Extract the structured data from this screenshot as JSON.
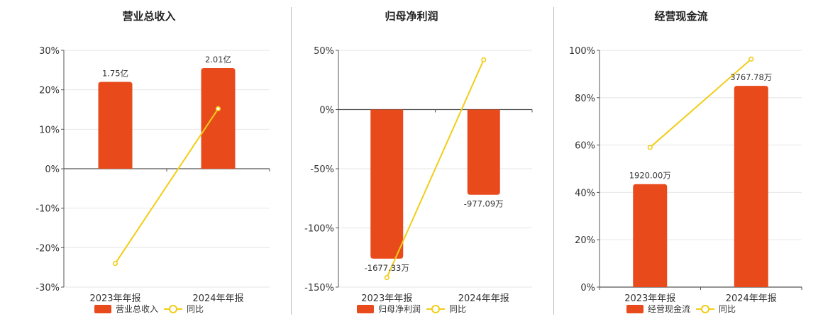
{
  "colors": {
    "bar": "#e84a1c",
    "line": "#f2cd18",
    "grid": "#e6e6e6",
    "axis": "#555555"
  },
  "chart_data": [
    {
      "type": "bar",
      "title": "营业总收入",
      "categories": [
        "2023年年报",
        "2024年年报"
      ],
      "series": [
        {
          "name": "营业总收入",
          "kind": "bar",
          "values": [
            22,
            25.5
          ],
          "labels": [
            "1.75亿",
            "2.01亿"
          ]
        },
        {
          "name": "同比",
          "kind": "line",
          "values": [
            -24,
            15.2
          ]
        }
      ],
      "ylim": [
        -30,
        30
      ],
      "yticks": [
        30,
        20,
        10,
        0,
        -10,
        -20,
        -30
      ],
      "ytick_labels": [
        "30%",
        "20%",
        "10%",
        "0%",
        "-10%",
        "-20%",
        "-30%"
      ],
      "grid": true,
      "legend": "bottom"
    },
    {
      "type": "bar",
      "title": "归母净利润",
      "categories": [
        "2023年年报",
        "2024年年报"
      ],
      "series": [
        {
          "name": "归母净利润",
          "kind": "bar",
          "values": [
            -126,
            -72
          ],
          "labels": [
            "-1677.33万",
            "-977.09万"
          ]
        },
        {
          "name": "同比",
          "kind": "line",
          "values": [
            -142,
            42
          ]
        }
      ],
      "ylim": [
        -150,
        50
      ],
      "yticks": [
        50,
        0,
        -50,
        -100,
        -150
      ],
      "ytick_labels": [
        "50%",
        "0%",
        "-50%",
        "-100%",
        "-150%"
      ],
      "grid": true,
      "legend": "bottom"
    },
    {
      "type": "bar",
      "title": "经营现金流",
      "categories": [
        "2023年年报",
        "2024年年报"
      ],
      "series": [
        {
          "name": "经营现金流",
          "kind": "bar",
          "values": [
            43.5,
            85
          ],
          "labels": [
            "1920.00万",
            "3767.78万"
          ]
        },
        {
          "name": "同比",
          "kind": "line",
          "values": [
            59,
            96.3
          ]
        }
      ],
      "ylim": [
        0,
        100
      ],
      "yticks": [
        100,
        80,
        60,
        40,
        20,
        0
      ],
      "ytick_labels": [
        "100%",
        "80%",
        "60%",
        "40%",
        "20%",
        "0%"
      ],
      "grid": true,
      "legend": "bottom"
    }
  ]
}
